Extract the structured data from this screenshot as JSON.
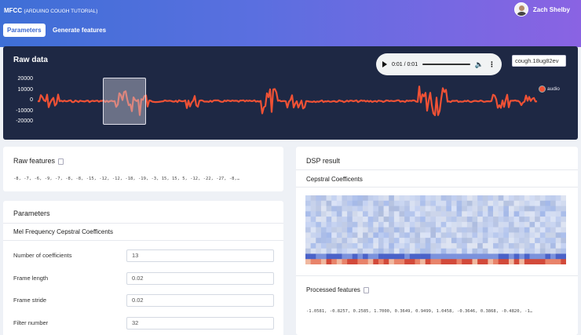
{
  "app": {
    "title": "MFCC",
    "subtitle": "(ARDUINO COUGH TUTORIAL)"
  },
  "user": {
    "name": "Zach Shelby"
  },
  "tabs": [
    {
      "label": "Parameters",
      "active": true
    },
    {
      "label": "Generate features",
      "active": false
    }
  ],
  "raw_data": {
    "title": "Raw data",
    "player": {
      "time": "0:01 / 0:01",
      "icons": [
        "play-icon",
        "volume-icon",
        "more-vert-icon"
      ]
    },
    "sample_select": "cough.18ug82ev",
    "legend": "audio",
    "y_ticks": [
      "20000",
      "10000",
      "0",
      "-10000",
      "-20000"
    ],
    "colors": {
      "background": "#1e2844",
      "wave": "#ef5135"
    }
  },
  "raw_features": {
    "title": "Raw features",
    "values": "-8, -7, -6, -9, -7, -8, -8, -15, -12, -12, -18, -19, -3, 15, 15, 5, -12, -22, -27, -8,…"
  },
  "parameters": {
    "title": "Parameters",
    "section": "Mel Frequency Cepstral Coefficents",
    "fields": [
      {
        "label": "Number of coefficients",
        "value": "13"
      },
      {
        "label": "Frame length",
        "value": "0.02"
      },
      {
        "label": "Frame stride",
        "value": "0.02"
      },
      {
        "label": "Filter number",
        "value": "32"
      }
    ]
  },
  "dsp": {
    "title": "DSP result",
    "section": "Cepstral Coefficents",
    "processed_title": "Processed features",
    "processed_values": "-1.0581, -0.8257, 0.2585, 1.7000, 0.3649, 0.9499, 1.0458, -0.3646, 0.3868, -0.4820, -1…"
  },
  "colors": {
    "accent": "#3b68d0",
    "header_start": "#3e6fd6",
    "header_end": "#8a63e3"
  }
}
